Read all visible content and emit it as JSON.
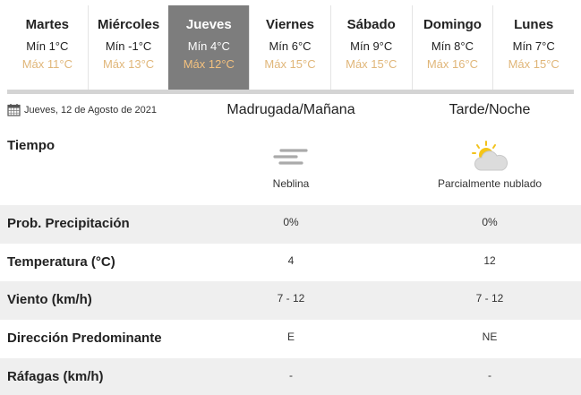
{
  "days": [
    {
      "name": "Martes",
      "min": "Mín 1°C",
      "max": "Máx 11°C"
    },
    {
      "name": "Miércoles",
      "min": "Mín -1°C",
      "max": "Máx 13°C"
    },
    {
      "name": "Jueves",
      "min": "Mín 4°C",
      "max": "Máx 12°C",
      "active": true
    },
    {
      "name": "Viernes",
      "min": "Mín 6°C",
      "max": "Máx 15°C"
    },
    {
      "name": "Sábado",
      "min": "Mín 9°C",
      "max": "Máx 15°C"
    },
    {
      "name": "Domingo",
      "min": "Mín 8°C",
      "max": "Máx 16°C"
    },
    {
      "name": "Lunes",
      "min": "Mín 7°C",
      "max": "Máx 15°C"
    }
  ],
  "date": "Jueves, 12 de Agosto de 2021",
  "columns": [
    "Madrugada/Mañana",
    "Tarde/Noche"
  ],
  "tiempo": {
    "label": "Tiempo",
    "values": [
      {
        "icon": "fog-icon",
        "text": "Neblina"
      },
      {
        "icon": "partly-cloudy-icon",
        "text": "Parcialmente nublado"
      }
    ]
  },
  "rows": [
    {
      "label": "Prob. Precipitación",
      "values": [
        "0%",
        "0%"
      ]
    },
    {
      "label": "Temperatura (°C)",
      "values": [
        "4",
        "12"
      ]
    },
    {
      "label": "Viento (km/h)",
      "values": [
        "7 - 12",
        "7 - 12"
      ]
    },
    {
      "label": "Dirección Predominante",
      "values": [
        "E",
        "NE"
      ]
    },
    {
      "label": "Ráfagas (km/h)",
      "values": [
        "-",
        "-"
      ]
    }
  ],
  "colors": {
    "active_tab": "#7d7d7d",
    "max_temp": "#e0b679",
    "row_alt": "#efefef"
  }
}
